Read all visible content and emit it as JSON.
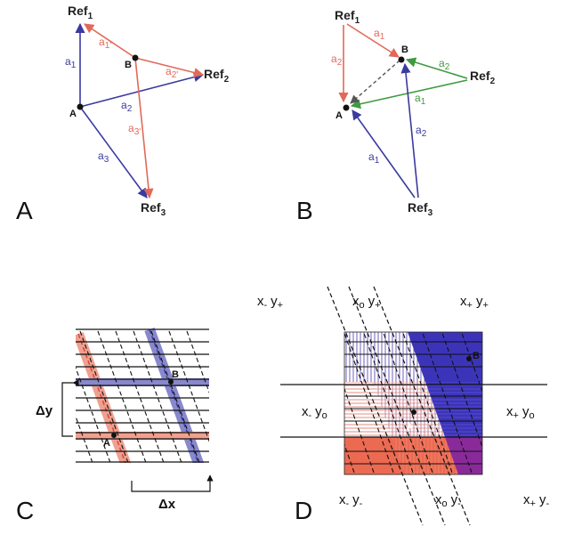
{
  "panels": {
    "A": {
      "label": "A",
      "ref1": {
        "base": "Ref",
        "sub": "1"
      },
      "ref2": {
        "base": "Ref",
        "sub": "2"
      },
      "ref3": {
        "base": "Ref",
        "sub": "3"
      },
      "node_a": "A",
      "node_b": "B",
      "a1": {
        "base": "a",
        "sub": "1"
      },
      "a2": {
        "base": "a",
        "sub": "2"
      },
      "a3": {
        "base": "a",
        "sub": "3"
      },
      "a1p": {
        "base": "a",
        "sub": "1'"
      },
      "a2p": {
        "base": "a",
        "sub": "2'"
      },
      "a3p": {
        "base": "a",
        "sub": "3'"
      }
    },
    "B": {
      "label": "B",
      "ref1": {
        "base": "Ref",
        "sub": "1"
      },
      "ref2": {
        "base": "Ref",
        "sub": "2"
      },
      "ref3": {
        "base": "Ref",
        "sub": "3"
      },
      "node_a": "A",
      "node_b": "B",
      "red_a1": {
        "base": "a",
        "sub": "1"
      },
      "red_a2": {
        "base": "a",
        "sub": "2"
      },
      "green_a2": {
        "base": "a",
        "sub": "2"
      },
      "green_a1": {
        "base": "a",
        "sub": "1"
      },
      "blue_a2": {
        "base": "a",
        "sub": "2"
      },
      "blue_a1": {
        "base": "a",
        "sub": "1"
      }
    },
    "C": {
      "label": "C",
      "node_a": "A",
      "node_b": "B",
      "delta_y": "Δy",
      "delta_x": "Δx"
    },
    "D": {
      "label": "D",
      "node_a": "A",
      "node_b": "B",
      "regions": {
        "xm_yp": {
          "x": "x",
          "xs": "-",
          "y": "y",
          "ys": "+"
        },
        "xo_yp": {
          "x": "x",
          "xs": "o",
          "y": "y",
          "ys": "+"
        },
        "xp_yp": {
          "x": "x",
          "xs": "+",
          "y": "y",
          "ys": "+"
        },
        "xm_yo": {
          "x": "x",
          "xs": "-",
          "y": "y",
          "ys": "o"
        },
        "xp_yo": {
          "x": "x",
          "xs": "+",
          "y": "y",
          "ys": "o"
        },
        "xm_ym": {
          "x": "x",
          "xs": "-",
          "y": "y",
          "ys": "-"
        },
        "xo_ym": {
          "x": "x",
          "xs": "o",
          "y": "y",
          "ys": "-"
        },
        "xp_ym": {
          "x": "x",
          "xs": "+",
          "y": "y",
          "ys": "-"
        }
      }
    }
  },
  "colors": {
    "blue": "#3a3aa0",
    "red": "#e06a58",
    "green": "#3f9a3f",
    "dark": "#111111",
    "grey": "#666666"
  }
}
